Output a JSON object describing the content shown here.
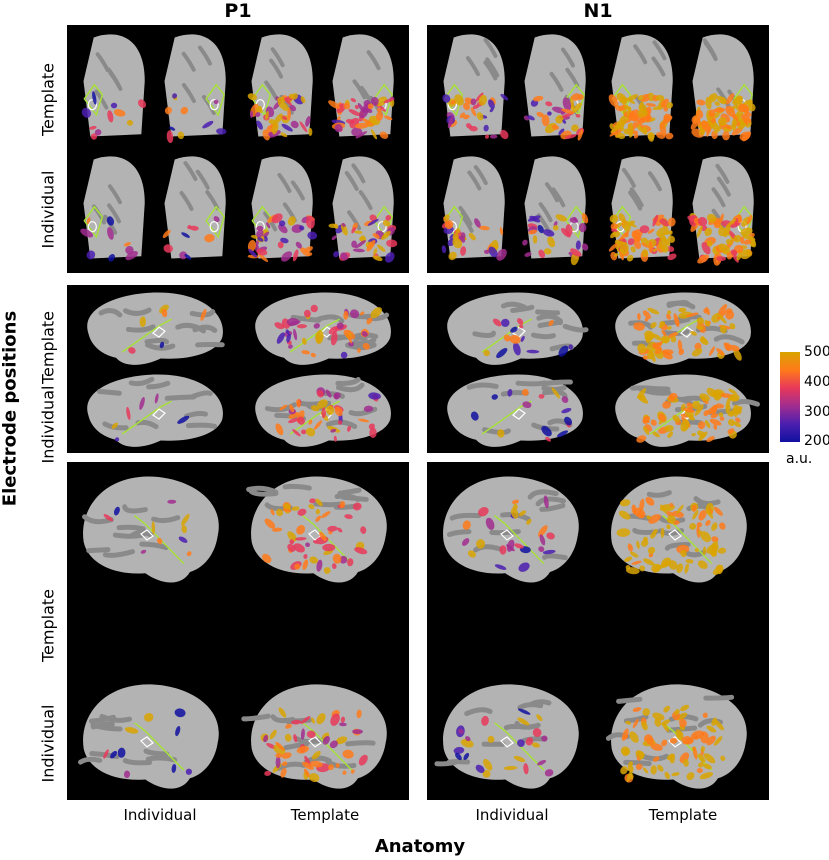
{
  "columns": [
    "P1",
    "N1"
  ],
  "row_labels": [
    "Template",
    "Individual"
  ],
  "x_labels": [
    "Individual",
    "Template",
    "Individual",
    "Template"
  ],
  "y_axis_title": "Electrode positions",
  "x_axis_title": "Anatomy",
  "colorbar": {
    "ticks": [
      "500",
      "400",
      "300",
      "200"
    ],
    "unit": "a.u.",
    "colors": [
      "#d9a300",
      "#ff7a1a",
      "#e8385a",
      "#a12d8f",
      "#4b1fb0",
      "#1010a0"
    ]
  },
  "views": [
    "posterior",
    "lateral-right",
    "lateral-left"
  ],
  "colors": {
    "background": "#000000",
    "cortex_light": "#b3b3b3",
    "cortex_dark": "#8a8a8a",
    "roi_outline_green": "#a7e03a",
    "roi_outline_white": "#ffffff"
  }
}
